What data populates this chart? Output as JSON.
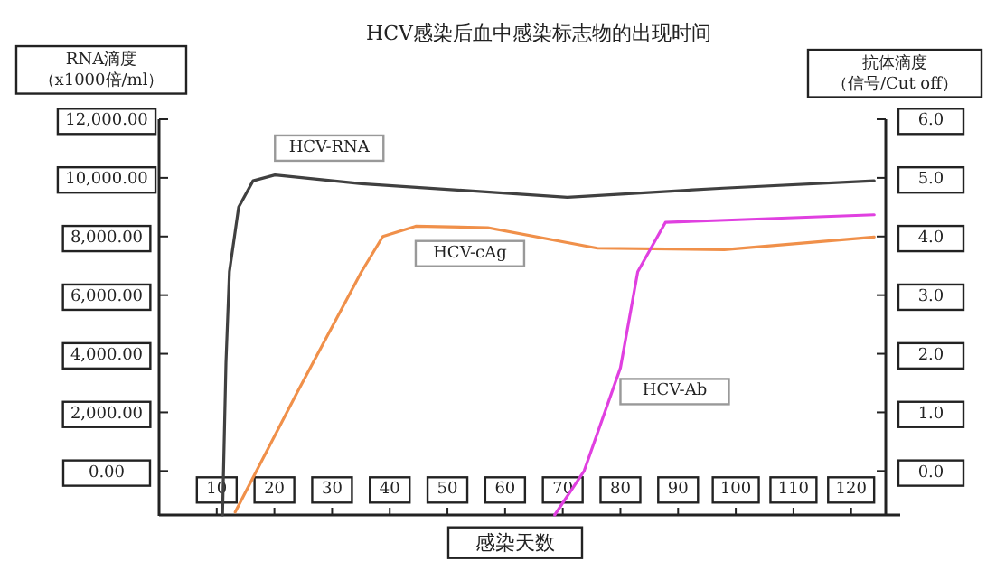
{
  "chart_data": {
    "type": "line",
    "title": "HCV感染后血中感染标志物的出现时间",
    "xlabel": "感染天数",
    "ylabel": "RNA滴度（x1000倍/ml）",
    "y2label": "抗体滴度（信号/Cut off）",
    "xlim": [
      0,
      126
    ],
    "xticks": [
      10,
      20,
      30,
      40,
      50,
      60,
      70,
      80,
      90,
      100,
      110,
      120
    ],
    "ylim": [
      -1500,
      12000
    ],
    "yticks": [
      {
        "value": 0,
        "label": "0.00"
      },
      {
        "value": 2000,
        "label": "2,000.00"
      },
      {
        "value": 4000,
        "label": "4,000.00"
      },
      {
        "value": 6000,
        "label": "6,000.00"
      },
      {
        "value": 8000,
        "label": "8,000.00"
      },
      {
        "value": 10000,
        "label": "10,000.00"
      },
      {
        "value": 12000,
        "label": "12,000.00"
      }
    ],
    "y2lim": [
      -0.75,
      6
    ],
    "y2ticks": [
      {
        "value": 0,
        "label": "0.0"
      },
      {
        "value": 1,
        "label": "1.0"
      },
      {
        "value": 2,
        "label": "2.0"
      },
      {
        "value": 3,
        "label": "3.0"
      },
      {
        "value": 4,
        "label": "4.0"
      },
      {
        "value": 5,
        "label": "5.0"
      },
      {
        "value": 6,
        "label": "6.0"
      }
    ],
    "grid": false,
    "legend": false,
    "marker": "none",
    "line_style": "solid",
    "series": [
      {
        "name": "HCV-RNA",
        "color": "#404040",
        "x": [
          11,
          11.6,
          12.2,
          13.8,
          16.3,
          20.1,
          35.1,
          70.8,
          97.8,
          124
        ],
        "values": [
          -1500,
          3700,
          6800,
          9000,
          9900,
          10100,
          9800,
          9340,
          9650,
          9900
        ]
      },
      {
        "name": "HCV-cAg",
        "color": "#f0904a",
        "x": [
          13.2,
          24,
          35.1,
          38.8,
          44.5,
          57,
          76,
          98,
          124
        ],
        "values": [
          -1400,
          2700,
          6800,
          8000,
          8350,
          8300,
          7600,
          7550,
          7980
        ]
      },
      {
        "name": "HCV-Ab",
        "color": "#e040e0",
        "axis": "y2",
        "x": [
          68.6,
          73.7,
          80,
          83,
          87.8,
          124
        ],
        "values": [
          -0.75,
          0,
          1.76,
          3.4,
          4.24,
          4.37
        ]
      }
    ]
  }
}
